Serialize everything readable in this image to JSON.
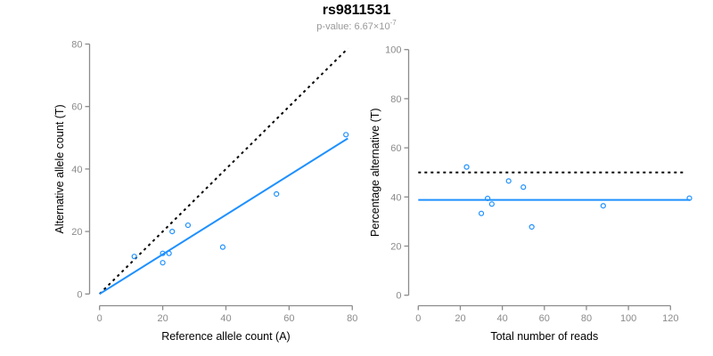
{
  "header": {
    "title": "rs9811531",
    "subtitle_prefix": "p-value: 6.67×10",
    "subtitle_exponent": "-7"
  },
  "colors": {
    "accent_blue": "#1E90FF",
    "axis_gray": "#8b8b8b",
    "tick_label_gray": "#8b8b8b",
    "title_black": "#000000",
    "subtitle_gray": "#999999",
    "dotted_line_black": "#000000"
  },
  "chart_data": [
    {
      "type": "scatter",
      "xlabel": "Reference allele count (A)",
      "ylabel": "Alternative allele count (T)",
      "xlim": [
        0,
        80
      ],
      "ylim": [
        0,
        80
      ],
      "xticks": [
        0,
        20,
        40,
        60,
        80
      ],
      "yticks": [
        0,
        20,
        40,
        60,
        80
      ],
      "grid": false,
      "legend": "none",
      "points": [
        [
          11,
          12
        ],
        [
          20,
          10
        ],
        [
          20,
          13
        ],
        [
          22,
          13
        ],
        [
          23,
          20
        ],
        [
          28,
          22
        ],
        [
          39,
          15
        ],
        [
          56,
          32
        ],
        [
          78,
          51
        ]
      ],
      "lines": [
        {
          "name": "identity-line",
          "style": "dotted",
          "color": "#000000",
          "from": [
            0,
            0
          ],
          "to": [
            78.6,
            78.6
          ]
        },
        {
          "name": "fit-line",
          "style": "solid",
          "color": "#1E90FF",
          "from": [
            0,
            0
          ],
          "to": [
            78.6,
            49.8
          ]
        }
      ]
    },
    {
      "type": "scatter",
      "xlabel": "Total number of reads",
      "ylabel": "Percentage alternative (T)",
      "xlim": [
        0,
        130
      ],
      "ylim": [
        0,
        100
      ],
      "xticks": [
        0,
        20,
        40,
        60,
        80,
        100,
        120
      ],
      "yticks": [
        0,
        20,
        40,
        60,
        80,
        100
      ],
      "grid": false,
      "legend": "none",
      "points": [
        [
          23,
          52.2
        ],
        [
          30,
          33.3
        ],
        [
          33,
          39.4
        ],
        [
          35,
          37.1
        ],
        [
          43,
          46.5
        ],
        [
          50,
          44.0
        ],
        [
          54,
          27.8
        ],
        [
          88,
          36.4
        ],
        [
          129,
          39.5
        ]
      ],
      "lines": [
        {
          "name": "expected-50pct-line",
          "style": "dotted",
          "color": "#000000",
          "from": [
            0,
            50
          ],
          "to": [
            127.5,
            50
          ]
        },
        {
          "name": "mean-pct-line",
          "style": "solid",
          "color": "#1E90FF",
          "from": [
            0,
            38.8
          ],
          "to": [
            129.3,
            38.8
          ]
        }
      ]
    }
  ]
}
